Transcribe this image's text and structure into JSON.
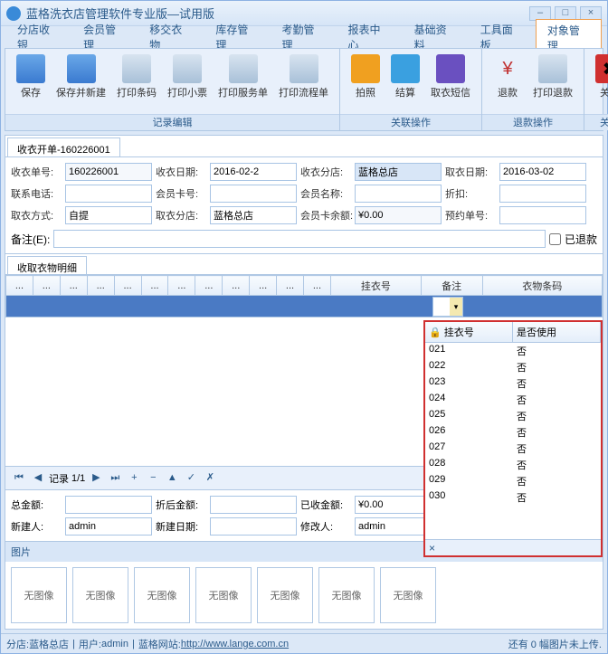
{
  "window": {
    "title": "蓝格洗衣店管理软件专业版—试用版"
  },
  "menu": [
    "分店收银",
    "会员管理",
    "移交衣物",
    "库存管理",
    "考勤管理",
    "报表中心",
    "基础资料",
    "工具面板",
    "对象管理"
  ],
  "menu_active": 8,
  "ribbon": {
    "groups": [
      {
        "label": "记录编辑",
        "buttons": [
          {
            "name": "save",
            "label": "保存",
            "icon": "ico-save"
          },
          {
            "name": "save-new",
            "label": "保存并新建",
            "icon": "ico-save"
          },
          {
            "name": "print-barcode",
            "label": "打印条码",
            "icon": "ico-print"
          },
          {
            "name": "print-ticket",
            "label": "打印小票",
            "icon": "ico-print"
          },
          {
            "name": "print-service",
            "label": "打印服务单",
            "icon": "ico-print"
          },
          {
            "name": "print-flow",
            "label": "打印流程单",
            "icon": "ico-print"
          }
        ]
      },
      {
        "label": "关联操作",
        "buttons": [
          {
            "name": "photo",
            "label": "拍照",
            "icon": "ico-photo"
          },
          {
            "name": "settle",
            "label": "结算",
            "icon": "ico-settle"
          },
          {
            "name": "sms",
            "label": "取衣短信",
            "icon": "ico-sms"
          }
        ]
      },
      {
        "label": "退款操作",
        "buttons": [
          {
            "name": "refund",
            "label": "退款",
            "icon": "ico-refund",
            "glyph": "¥"
          },
          {
            "name": "print-refund",
            "label": "打印退款",
            "icon": "ico-print"
          }
        ]
      },
      {
        "label": "关闭",
        "buttons": [
          {
            "name": "close",
            "label": "关闭",
            "icon": "ico-close",
            "glyph": "✖"
          }
        ]
      }
    ]
  },
  "tab_main": "收衣开单-160226001",
  "form": {
    "order_no_lbl": "收衣单号:",
    "order_no": "160226001",
    "order_date_lbl": "收衣日期:",
    "order_date": "2016-02-2",
    "branch_lbl": "收衣分店:",
    "branch": "蓝格总店",
    "pickup_date_lbl": "取衣日期:",
    "pickup_date": "2016-03-02",
    "phone_lbl": "联系电话:",
    "phone": "",
    "card_no_lbl": "会员卡号:",
    "card_no": "",
    "member_lbl": "会员名称:",
    "member": "",
    "discount_lbl": "折扣:",
    "discount": "",
    "pickup_way_lbl": "取衣方式:",
    "pickup_way": "自提",
    "pickup_branch_lbl": "取衣分店:",
    "pickup_branch": "蓝格总店",
    "balance_lbl": "会员卡余额:",
    "balance": "¥0.00",
    "reserve_lbl": "预约单号:",
    "reserve": "",
    "remark_lbl": "备注(E):",
    "remark": "",
    "refunded_lbl": "已退款"
  },
  "subtab": "收取衣物明细",
  "grid": {
    "cols": [
      "...",
      "...",
      "...",
      "...",
      "...",
      "...",
      "...",
      "...",
      "...",
      "...",
      "...",
      "...",
      "挂衣号",
      "备注",
      "衣物条码"
    ]
  },
  "popup": {
    "col1": "挂衣号",
    "col2": "是否使用",
    "rows": [
      {
        "no": "021",
        "used": "否"
      },
      {
        "no": "022",
        "used": "否"
      },
      {
        "no": "023",
        "used": "否"
      },
      {
        "no": "024",
        "used": "否"
      },
      {
        "no": "025",
        "used": "否"
      },
      {
        "no": "026",
        "used": "否"
      },
      {
        "no": "027",
        "used": "否"
      },
      {
        "no": "028",
        "used": "否"
      },
      {
        "no": "029",
        "used": "否"
      },
      {
        "no": "030",
        "used": "否"
      }
    ]
  },
  "pager": {
    "label": "记录",
    "pos": "1/1"
  },
  "totals": {
    "total_lbl": "总金额:",
    "total": "",
    "after_lbl": "折后金额:",
    "after": "",
    "paid_lbl": "已收金额:",
    "paid": "¥0.00",
    "creator_lbl": "新建人:",
    "creator": "admin",
    "create_date_lbl": "新建日期:",
    "create_date": "",
    "modifier_lbl": "修改人:",
    "modifier": "admin"
  },
  "pics": {
    "header": "图片",
    "noimg": "无图像",
    "count": 7
  },
  "status": {
    "branch_lbl": "分店:",
    "branch": "蓝格总店",
    "user_lbl": "用户:",
    "user": "admin",
    "site_lbl": "蓝格网站:",
    "site": "http://www.lange.com.cn",
    "right": "还有 0 幅图片未上传."
  }
}
